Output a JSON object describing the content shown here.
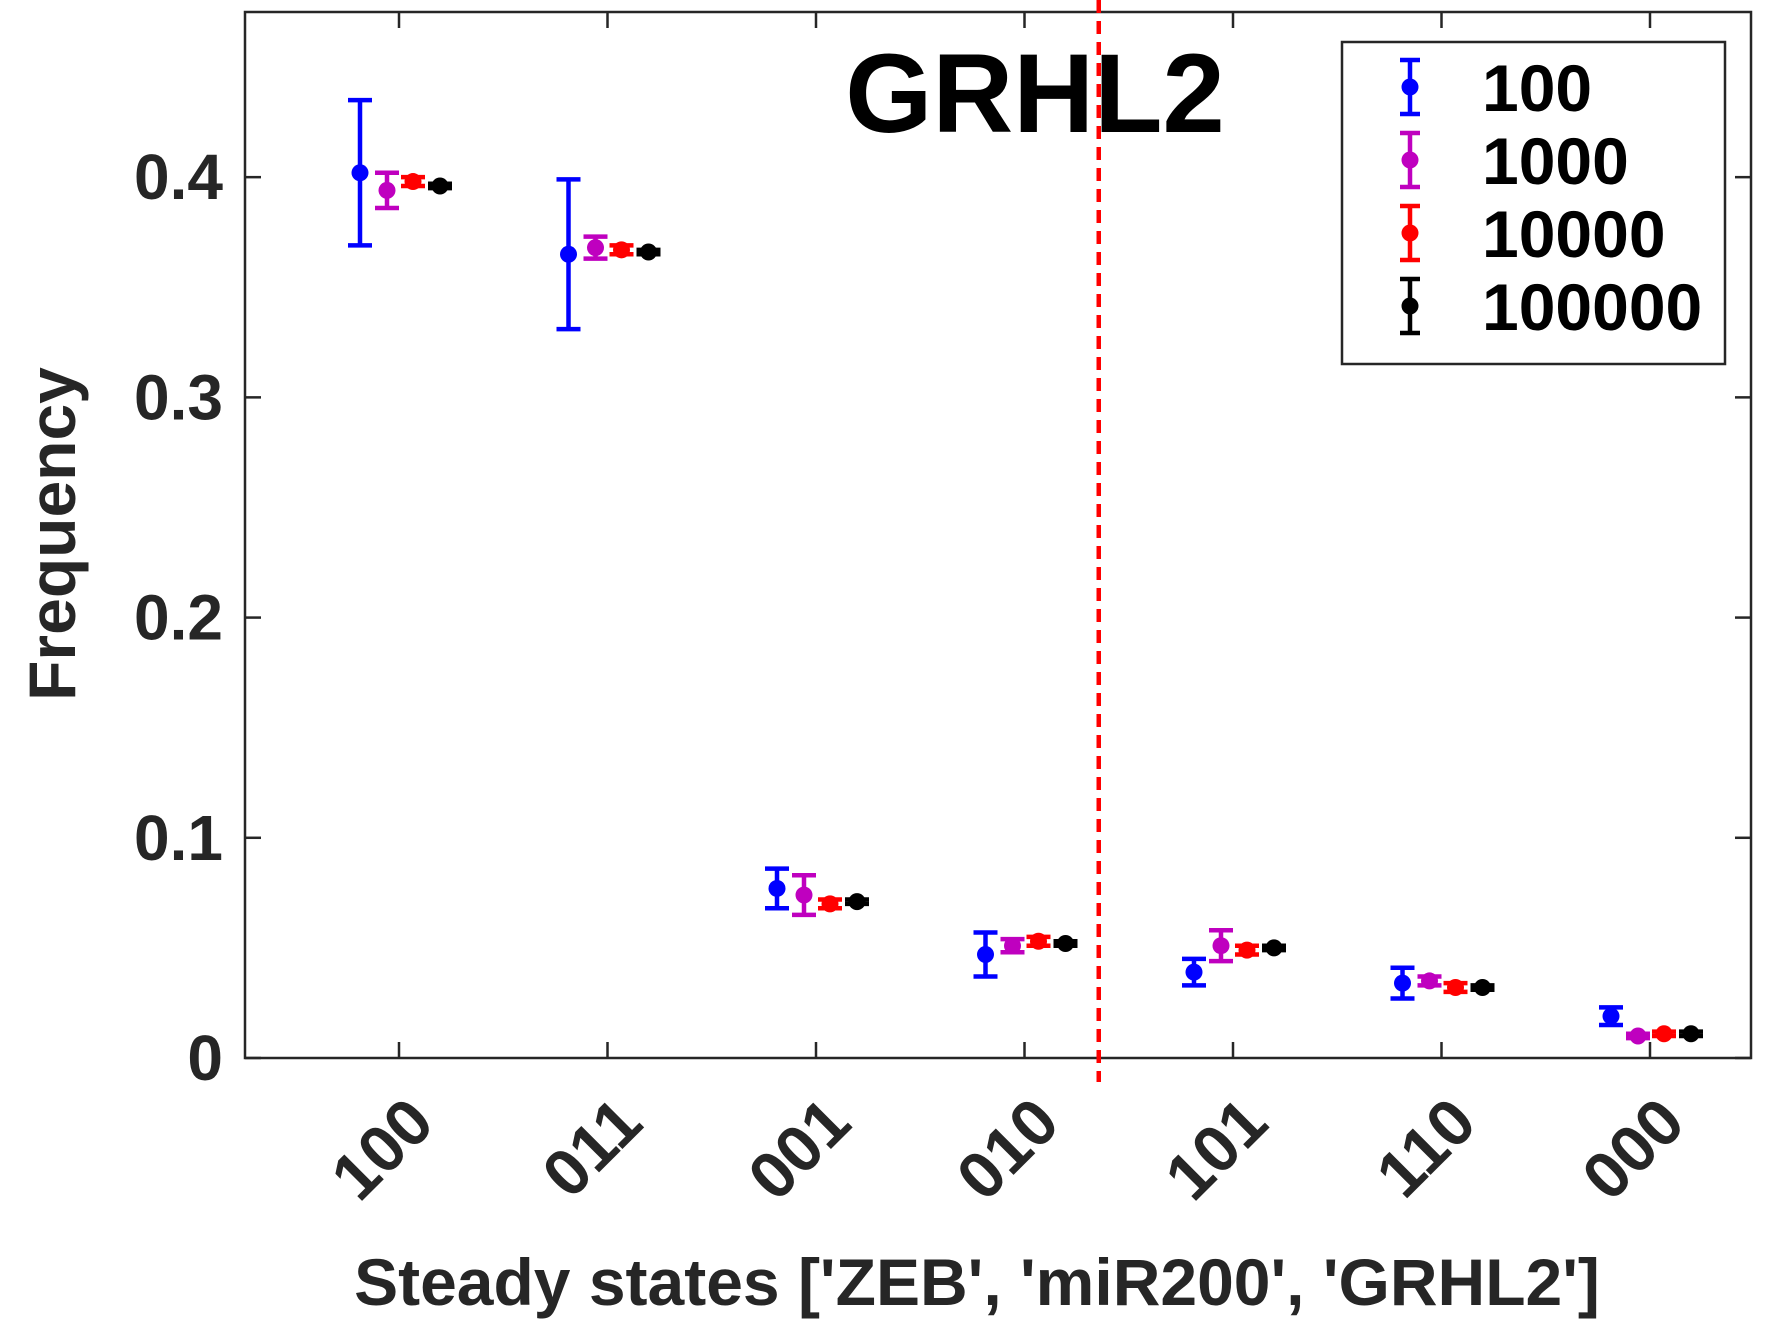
{
  "chart_data": {
    "type": "scatter",
    "title": "GRHL2",
    "xlabel": "Steady states ['ZEB', 'miR200', 'GRHL2']",
    "ylabel": "Frequency",
    "categories": [
      "100",
      "011",
      "001",
      "010",
      "101",
      "110",
      "000"
    ],
    "ylim": [
      0,
      0.475
    ],
    "yticks": [
      0,
      0.1,
      0.2,
      0.3,
      0.4
    ],
    "ytick_labels": [
      "0",
      "0.1",
      "0.2",
      "0.3",
      "0.4"
    ],
    "vline_after_category": "010",
    "vline_color": "#ff0000",
    "legend_position": "top-right",
    "grid": false,
    "series": [
      {
        "name": "100",
        "color": "#0000ff",
        "values": [
          0.402,
          0.365,
          0.077,
          0.047,
          0.039,
          0.034,
          0.019
        ],
        "errors": [
          0.033,
          0.034,
          0.009,
          0.01,
          0.006,
          0.007,
          0.004
        ]
      },
      {
        "name": "1000",
        "color": "#bf00bf",
        "values": [
          0.394,
          0.368,
          0.074,
          0.051,
          0.051,
          0.035,
          0.01
        ],
        "errors": [
          0.008,
          0.005,
          0.009,
          0.003,
          0.007,
          0.002,
          0.001
        ]
      },
      {
        "name": "10000",
        "color": "#ff0000",
        "values": [
          0.398,
          0.367,
          0.07,
          0.053,
          0.049,
          0.032,
          0.011
        ],
        "errors": [
          0.002,
          0.002,
          0.002,
          0.002,
          0.002,
          0.002,
          0.001
        ]
      },
      {
        "name": "100000",
        "color": "#000000",
        "values": [
          0.396,
          0.366,
          0.071,
          0.052,
          0.05,
          0.032,
          0.011
        ],
        "errors": [
          0.001,
          0.001,
          0.001,
          0.001,
          0.001,
          0.001,
          0.001
        ]
      }
    ]
  }
}
